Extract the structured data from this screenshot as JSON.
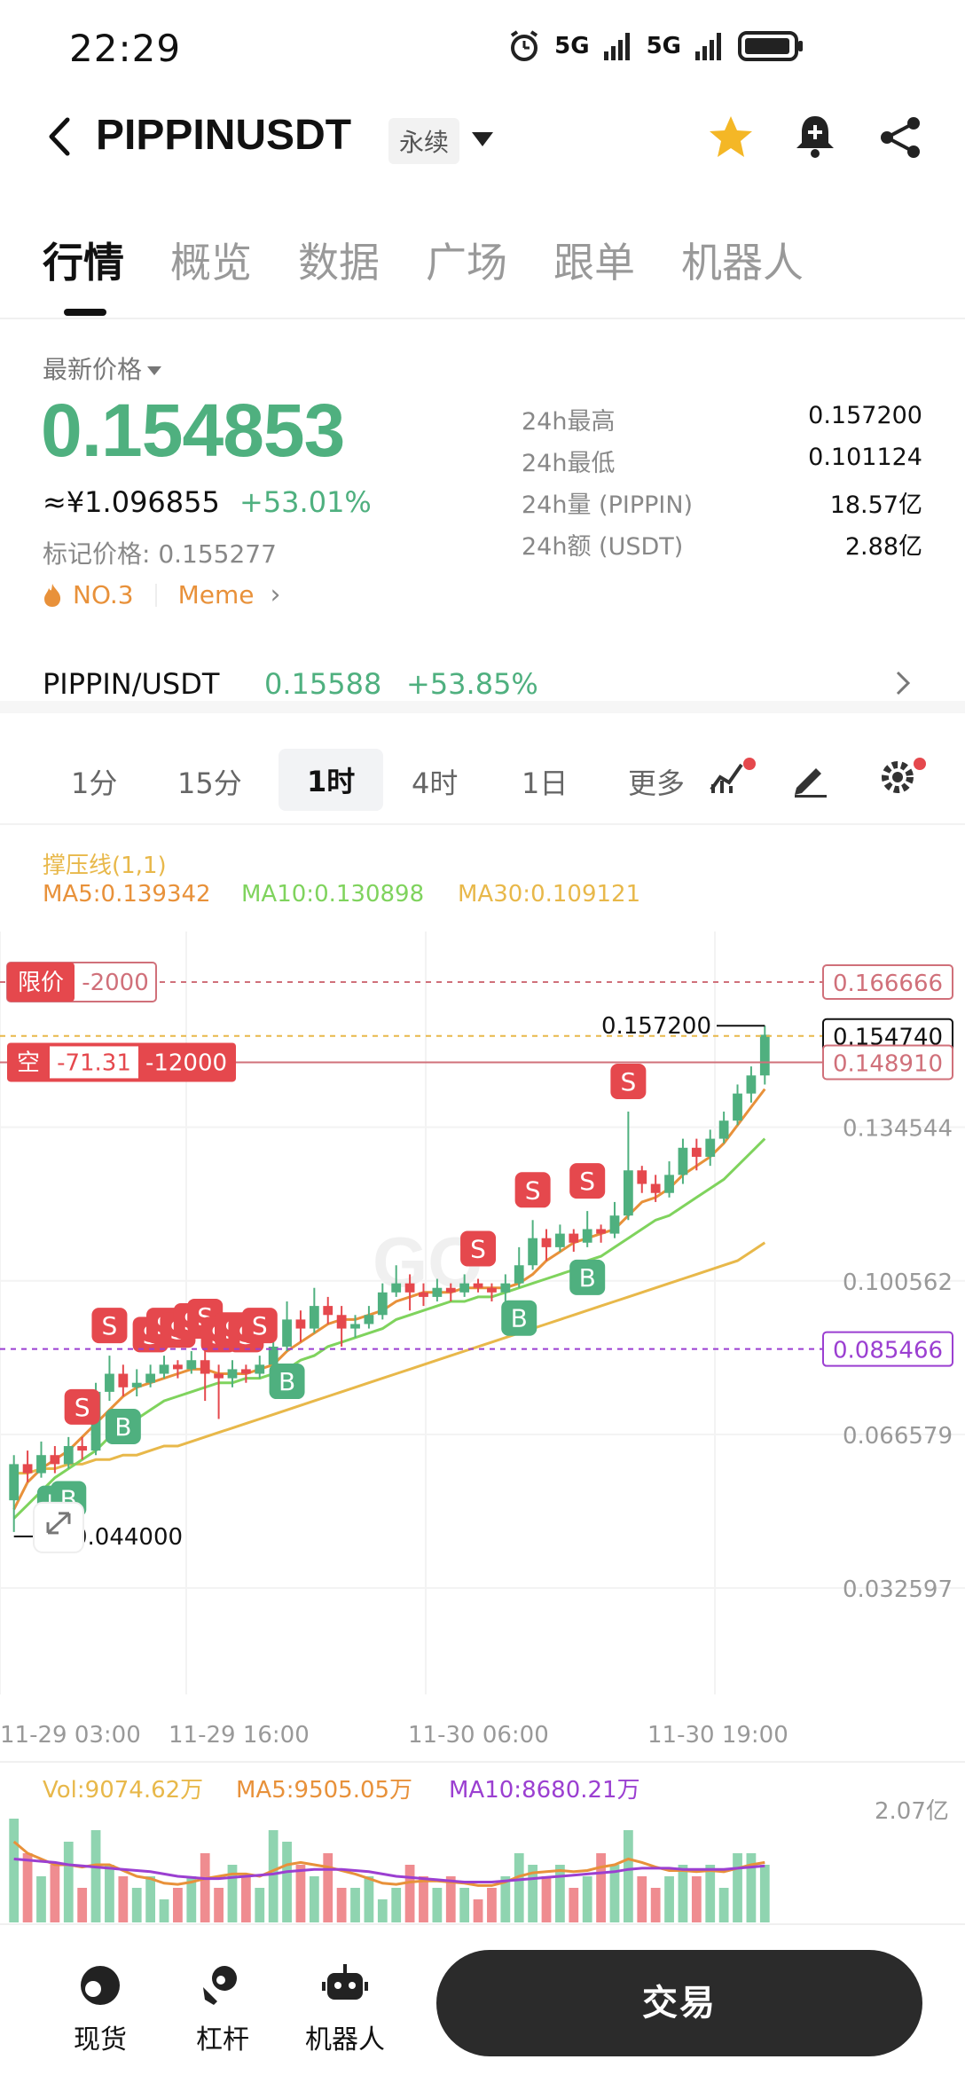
{
  "status_bar": {
    "time": "22:29",
    "signal1": "5G",
    "signal2": "5G"
  },
  "header": {
    "title": "PIPPINUSDT",
    "badge": "永续"
  },
  "tabs": [
    "行情",
    "概览",
    "数据",
    "广场",
    "跟单",
    "机器人"
  ],
  "price": {
    "latest_label": "最新价格",
    "last": "0.154853",
    "cny": "≈¥1.096855",
    "change": "+53.01%",
    "mark": "标记价格: 0.155277",
    "rank": "NO.3",
    "tag": "Meme"
  },
  "stats": [
    {
      "label": "24h最高",
      "value": "0.157200"
    },
    {
      "label": "24h最低",
      "value": "0.101124"
    },
    {
      "label": "24h量 (PIPPIN)",
      "value": "18.57亿"
    },
    {
      "label": "24h额 (USDT)",
      "value": "2.88亿"
    }
  ],
  "spot": {
    "pair": "PIPPIN/USDT",
    "price": "0.15588",
    "change": "+53.85%"
  },
  "intervals": [
    "1分",
    "15分",
    "1时",
    "4时",
    "1日",
    "更多"
  ],
  "indicators": {
    "sr": "撑压线(1,1)",
    "ma5": "MA5:0.139342",
    "ma10": "MA10:0.130898",
    "ma30": "MA30:0.109121"
  },
  "orders": {
    "limit_label": "限价",
    "limit_qty": "-2000",
    "short_label": "空",
    "short_pnl": "-71.31",
    "short_qty": "-12000"
  },
  "price_tags": {
    "limit": "0.166666",
    "current": "0.154740",
    "position": "0.148910",
    "alert": "0.085466",
    "high_label": "0.157200",
    "low_label": "0.044000"
  },
  "chart_data": {
    "type": "candlestick",
    "y_ticks": [
      "0.134544",
      "0.100562",
      "0.066579",
      "0.032597"
    ],
    "x_ticks": [
      "11-29 03:00",
      "11-29 16:00",
      "11-30 06:00",
      "11-30 19:00"
    ],
    "ylim": [
      0.0326,
      0.17
    ],
    "candles": [
      [
        0.052,
        0.06,
        0.045,
        0.062
      ],
      [
        0.06,
        0.058,
        0.056,
        0.063
      ],
      [
        0.058,
        0.062,
        0.057,
        0.065
      ],
      [
        0.062,
        0.06,
        0.058,
        0.064
      ],
      [
        0.06,
        0.064,
        0.059,
        0.066
      ],
      [
        0.064,
        0.063,
        0.061,
        0.066
      ],
      [
        0.063,
        0.076,
        0.062,
        0.078
      ],
      [
        0.076,
        0.08,
        0.074,
        0.084
      ],
      [
        0.08,
        0.077,
        0.075,
        0.082
      ],
      [
        0.077,
        0.078,
        0.075,
        0.081
      ],
      [
        0.078,
        0.08,
        0.077,
        0.082
      ],
      [
        0.08,
        0.082,
        0.079,
        0.084
      ],
      [
        0.082,
        0.081,
        0.079,
        0.083
      ],
      [
        0.081,
        0.083,
        0.08,
        0.085
      ],
      [
        0.083,
        0.08,
        0.074,
        0.086
      ],
      [
        0.08,
        0.079,
        0.07,
        0.082
      ],
      [
        0.079,
        0.081,
        0.077,
        0.083
      ],
      [
        0.081,
        0.08,
        0.078,
        0.082
      ],
      [
        0.08,
        0.082,
        0.079,
        0.084
      ],
      [
        0.082,
        0.086,
        0.081,
        0.09
      ],
      [
        0.086,
        0.092,
        0.085,
        0.096
      ],
      [
        0.092,
        0.09,
        0.087,
        0.094
      ],
      [
        0.09,
        0.095,
        0.089,
        0.099
      ],
      [
        0.095,
        0.093,
        0.091,
        0.097
      ],
      [
        0.093,
        0.09,
        0.086,
        0.095
      ],
      [
        0.09,
        0.091,
        0.088,
        0.093
      ],
      [
        0.091,
        0.093,
        0.09,
        0.095
      ],
      [
        0.093,
        0.098,
        0.092,
        0.1
      ],
      [
        0.098,
        0.1,
        0.097,
        0.104
      ],
      [
        0.1,
        0.098,
        0.094,
        0.102
      ],
      [
        0.098,
        0.097,
        0.095,
        0.1
      ],
      [
        0.097,
        0.099,
        0.096,
        0.101
      ],
      [
        0.099,
        0.098,
        0.096,
        0.1
      ],
      [
        0.098,
        0.1,
        0.097,
        0.102
      ],
      [
        0.1,
        0.099,
        0.098,
        0.101
      ],
      [
        0.099,
        0.098,
        0.096,
        0.1
      ],
      [
        0.098,
        0.1,
        0.093,
        0.102
      ],
      [
        0.1,
        0.104,
        0.099,
        0.108
      ],
      [
        0.104,
        0.11,
        0.103,
        0.114
      ],
      [
        0.11,
        0.108,
        0.105,
        0.112
      ],
      [
        0.108,
        0.111,
        0.107,
        0.113
      ],
      [
        0.111,
        0.109,
        0.107,
        0.112
      ],
      [
        0.109,
        0.112,
        0.108,
        0.116
      ],
      [
        0.112,
        0.111,
        0.109,
        0.113
      ],
      [
        0.111,
        0.115,
        0.11,
        0.118
      ],
      [
        0.115,
        0.125,
        0.114,
        0.138
      ],
      [
        0.125,
        0.122,
        0.12,
        0.126
      ],
      [
        0.122,
        0.12,
        0.118,
        0.124
      ],
      [
        0.12,
        0.124,
        0.119,
        0.127
      ],
      [
        0.124,
        0.13,
        0.122,
        0.132
      ],
      [
        0.13,
        0.128,
        0.125,
        0.132
      ],
      [
        0.128,
        0.132,
        0.126,
        0.134
      ],
      [
        0.132,
        0.136,
        0.131,
        0.138
      ],
      [
        0.136,
        0.142,
        0.135,
        0.144
      ],
      [
        0.142,
        0.146,
        0.14,
        0.148
      ],
      [
        0.146,
        0.155,
        0.144,
        0.157
      ]
    ],
    "ma5": [
      0.05,
      0.056,
      0.059,
      0.061,
      0.063,
      0.066,
      0.069,
      0.072,
      0.075,
      0.077,
      0.078,
      0.079,
      0.08,
      0.081,
      0.081,
      0.08,
      0.08,
      0.08,
      0.081,
      0.082,
      0.085,
      0.087,
      0.089,
      0.091,
      0.092,
      0.092,
      0.093,
      0.094,
      0.096,
      0.097,
      0.098,
      0.098,
      0.098,
      0.099,
      0.099,
      0.099,
      0.099,
      0.1,
      0.102,
      0.105,
      0.107,
      0.109,
      0.11,
      0.111,
      0.112,
      0.115,
      0.118,
      0.119,
      0.121,
      0.124,
      0.126,
      0.128,
      0.131,
      0.135,
      0.139,
      0.143
    ],
    "ma10": [
      0.048,
      0.051,
      0.054,
      0.057,
      0.059,
      0.061,
      0.063,
      0.066,
      0.068,
      0.07,
      0.072,
      0.074,
      0.075,
      0.076,
      0.077,
      0.078,
      0.078,
      0.079,
      0.079,
      0.08,
      0.081,
      0.083,
      0.084,
      0.086,
      0.087,
      0.088,
      0.089,
      0.09,
      0.092,
      0.093,
      0.094,
      0.095,
      0.096,
      0.096,
      0.097,
      0.097,
      0.098,
      0.099,
      0.1,
      0.101,
      0.102,
      0.103,
      0.105,
      0.106,
      0.108,
      0.11,
      0.112,
      0.114,
      0.115,
      0.117,
      0.119,
      0.121,
      0.123,
      0.126,
      0.129,
      0.132
    ],
    "ma30": [
      0.058,
      0.058,
      0.059,
      0.059,
      0.06,
      0.06,
      0.061,
      0.061,
      0.062,
      0.062,
      0.063,
      0.064,
      0.064,
      0.065,
      0.066,
      0.067,
      0.068,
      0.069,
      0.07,
      0.071,
      0.072,
      0.073,
      0.074,
      0.075,
      0.076,
      0.077,
      0.078,
      0.079,
      0.08,
      0.081,
      0.082,
      0.083,
      0.084,
      0.085,
      0.086,
      0.087,
      0.088,
      0.089,
      0.09,
      0.091,
      0.092,
      0.093,
      0.094,
      0.095,
      0.096,
      0.097,
      0.098,
      0.099,
      0.1,
      0.101,
      0.102,
      0.103,
      0.104,
      0.105,
      0.107,
      0.109
    ],
    "signals": [
      {
        "i": 5,
        "t": "S",
        "above": true
      },
      {
        "i": 7,
        "t": "S",
        "above": true
      },
      {
        "i": 10,
        "t": "S",
        "above": true
      },
      {
        "i": 11,
        "t": "S",
        "above": true
      },
      {
        "i": 12,
        "t": "S",
        "above": true
      },
      {
        "i": 13,
        "t": "S",
        "above": true
      },
      {
        "i": 14,
        "t": "S",
        "above": true
      },
      {
        "i": 15,
        "t": "S",
        "above": true
      },
      {
        "i": 16,
        "t": "S",
        "above": true
      },
      {
        "i": 17,
        "t": "S",
        "above": true
      },
      {
        "i": 18,
        "t": "S",
        "above": true
      },
      {
        "i": 34,
        "t": "S",
        "above": true
      },
      {
        "i": 38,
        "t": "S",
        "above": true
      },
      {
        "i": 42,
        "t": "S",
        "above": true
      },
      {
        "i": 45,
        "t": "S",
        "above": true
      },
      {
        "i": 3,
        "t": "B",
        "above": false
      },
      {
        "i": 4,
        "t": "B",
        "above": false
      },
      {
        "i": 8,
        "t": "B",
        "above": false
      },
      {
        "i": 20,
        "t": "B",
        "above": false
      },
      {
        "i": 37,
        "t": "B",
        "above": false
      },
      {
        "i": 42,
        "t": "B",
        "above": false
      }
    ]
  },
  "volume": {
    "vol": "Vol:9074.62万",
    "ma5": "MA5:9505.05万",
    "ma10": "MA10:8680.21万",
    "y_top": "2.07亿",
    "bars": [
      0.9,
      0.6,
      0.4,
      0.5,
      0.7,
      0.3,
      0.8,
      0.5,
      0.4,
      0.3,
      0.4,
      0.2,
      0.3,
      0.4,
      0.6,
      0.3,
      0.5,
      0.4,
      0.3,
      0.8,
      0.7,
      0.5,
      0.4,
      0.6,
      0.3,
      0.3,
      0.4,
      0.2,
      0.3,
      0.5,
      0.4,
      0.3,
      0.4,
      0.3,
      0.2,
      0.3,
      0.4,
      0.6,
      0.5,
      0.4,
      0.5,
      0.3,
      0.4,
      0.6,
      0.5,
      0.8,
      0.4,
      0.3,
      0.4,
      0.5,
      0.4,
      0.5,
      0.3,
      0.6,
      0.6,
      0.5
    ],
    "ma5_line": [
      0.7,
      0.6,
      0.55,
      0.5,
      0.5,
      0.48,
      0.5,
      0.5,
      0.45,
      0.4,
      0.38,
      0.34,
      0.33,
      0.35,
      0.38,
      0.4,
      0.42,
      0.42,
      0.4,
      0.45,
      0.5,
      0.52,
      0.5,
      0.48,
      0.45,
      0.42,
      0.38,
      0.34,
      0.33,
      0.35,
      0.36,
      0.36,
      0.35,
      0.34,
      0.32,
      0.32,
      0.35,
      0.4,
      0.43,
      0.44,
      0.45,
      0.44,
      0.45,
      0.48,
      0.5,
      0.55,
      0.52,
      0.48,
      0.45,
      0.45,
      0.44,
      0.45,
      0.44,
      0.47,
      0.5,
      0.52
    ],
    "ma10_line": [
      0.55,
      0.54,
      0.53,
      0.52,
      0.5,
      0.49,
      0.48,
      0.47,
      0.46,
      0.45,
      0.44,
      0.42,
      0.4,
      0.39,
      0.38,
      0.38,
      0.39,
      0.4,
      0.41,
      0.42,
      0.44,
      0.45,
      0.46,
      0.46,
      0.46,
      0.45,
      0.44,
      0.42,
      0.4,
      0.39,
      0.38,
      0.37,
      0.36,
      0.35,
      0.35,
      0.35,
      0.36,
      0.37,
      0.38,
      0.39,
      0.4,
      0.41,
      0.42,
      0.43,
      0.44,
      0.46,
      0.47,
      0.47,
      0.47,
      0.46,
      0.46,
      0.46,
      0.46,
      0.47,
      0.48,
      0.49
    ]
  },
  "bottom_nav": {
    "spot": "现货",
    "margin": "杠杆",
    "bot": "机器人",
    "trade": "交易"
  },
  "colors": {
    "up": "#4fb07f",
    "down": "#e5484d",
    "ma5": "#e8913a",
    "ma10": "#7fd35d",
    "ma30": "#e8b84a",
    "vol_ma10": "#9b3fd1"
  }
}
